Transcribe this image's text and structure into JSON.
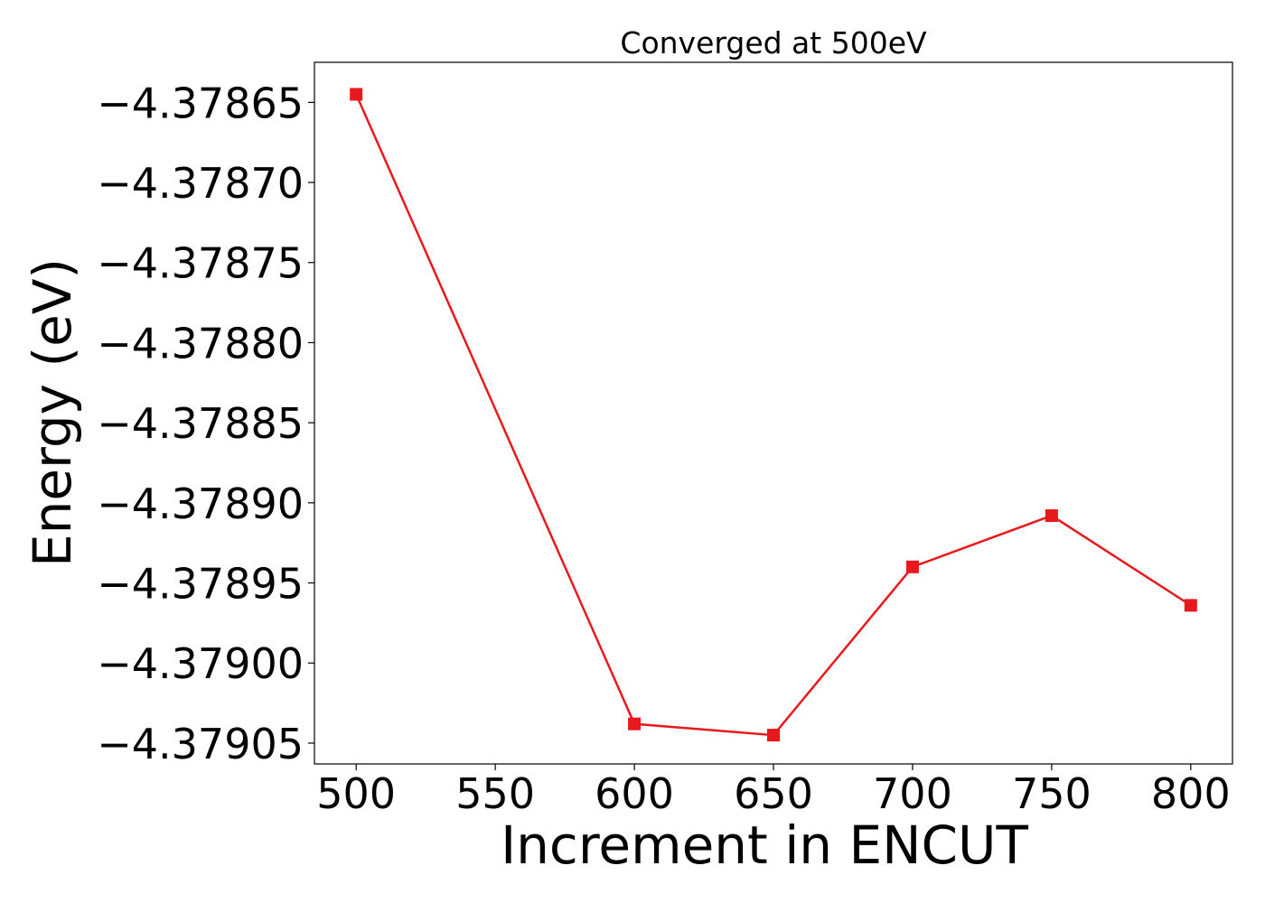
{
  "chart_data": {
    "type": "line",
    "title": "Converged at 500eV",
    "xlabel": "Increment in ENCUT",
    "ylabel": "Energy (eV)",
    "x": [
      500,
      600,
      650,
      700,
      750,
      800
    ],
    "series": [
      {
        "values": [
          -4.378645,
          -4.379038,
          -4.379045,
          -4.37894,
          -4.378908,
          -4.378964
        ],
        "color": "#e8191c",
        "marker": "square"
      }
    ],
    "xlim": [
      485,
      815
    ],
    "ylim": [
      -4.379063,
      -4.378625
    ],
    "xticks": [
      500,
      550,
      600,
      650,
      700,
      750,
      800
    ],
    "xtick_labels": [
      "500",
      "550",
      "600",
      "650",
      "700",
      "750",
      "800"
    ],
    "yticks": [
      -4.37865,
      -4.3787,
      -4.37875,
      -4.3788,
      -4.37885,
      -4.3789,
      -4.37895,
      -4.379,
      -4.37905
    ],
    "ytick_labels": [
      "−4.37865",
      "−4.37870",
      "−4.37875",
      "−4.37880",
      "−4.37885",
      "−4.37890",
      "−4.37895",
      "−4.37900",
      "−4.37905"
    ],
    "grid": false,
    "legend": "none"
  }
}
